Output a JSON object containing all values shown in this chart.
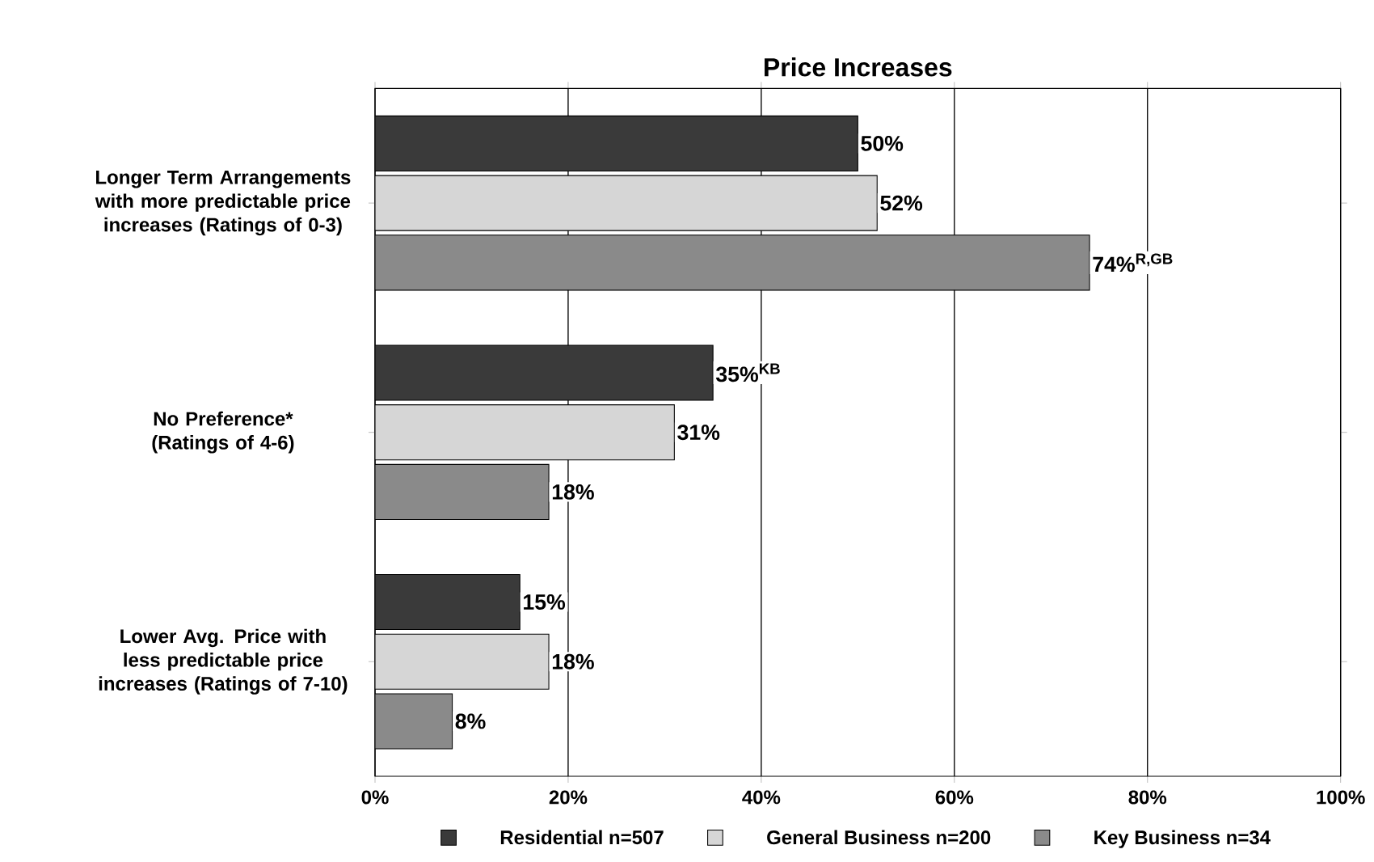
{
  "chart_data": {
    "type": "bar",
    "orientation": "horizontal",
    "title": "Price Increases",
    "categories": [
      "Longer Term Arrangements with more predictable price increases (Ratings of 0-3)",
      "No Preference* (Ratings of 4-6)",
      "Lower Avg. Price with less predictable price increases (Ratings of 7-10)"
    ],
    "series": [
      {
        "name": "Residential n=507",
        "color": "#3a3a3a",
        "values": [
          50,
          35,
          15
        ],
        "value_labels": [
          "50%",
          "35%$^{KB}$",
          "15%"
        ]
      },
      {
        "name": "General Business n=200",
        "color": "#d6d6d6",
        "values": [
          52,
          31,
          18
        ],
        "value_labels": [
          "52%",
          "31%",
          "18%"
        ]
      },
      {
        "name": "Key Business n=34",
        "color": "#8a8a8a",
        "values": [
          74,
          18,
          8
        ],
        "value_labels": [
          "74%$^{R,GB}$",
          "18%",
          "8%"
        ]
      }
    ],
    "xlim": [
      0,
      100
    ],
    "xticks": [
      {
        "value": 0,
        "label": "0%"
      },
      {
        "value": 20,
        "label": "20%"
      },
      {
        "value": 40,
        "label": "40%"
      },
      {
        "value": 60,
        "label": "60%"
      },
      {
        "value": 80,
        "label": "80%"
      },
      {
        "value": 100,
        "label": "100%"
      }
    ],
    "grid": "x",
    "legend": "bottom"
  }
}
